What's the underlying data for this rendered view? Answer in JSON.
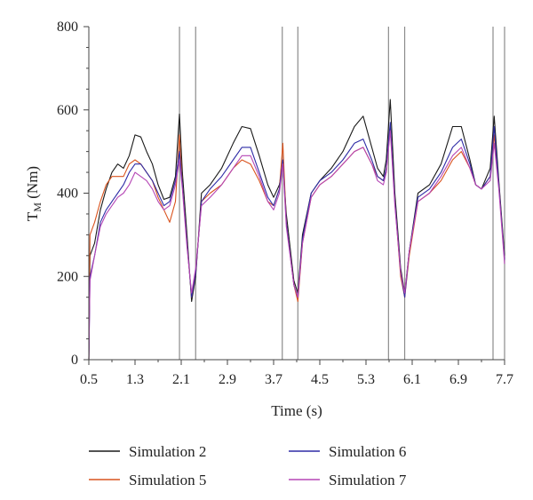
{
  "chart_data": {
    "type": "line",
    "title": "",
    "xlabel": "Time (s)",
    "ylabel_main": "T",
    "ylabel_sub": "M",
    "ylabel_unit": " (Nm)",
    "xlim": [
      0.5,
      7.7
    ],
    "ylim": [
      0,
      800
    ],
    "x_ticks": [
      0.5,
      1.3,
      2.1,
      2.9,
      3.7,
      4.5,
      5.3,
      6.1,
      6.9,
      7.7
    ],
    "x_tick_labels": [
      "0.5",
      "1.3",
      "2.1",
      "2.9",
      "3.7",
      "4.5",
      "5.3",
      "6.1",
      "6.9",
      "7.7"
    ],
    "y_ticks": [
      0,
      200,
      400,
      600,
      800
    ],
    "y_tick_labels": [
      "0",
      "200",
      "400",
      "600",
      "800"
    ],
    "grid": false,
    "legend_position": "bottom",
    "vertical_markers": [
      2.07,
      2.35,
      3.85,
      4.12,
      5.69,
      5.97,
      7.5,
      7.7
    ],
    "series": [
      {
        "name": "Simulation 2",
        "color": "#1a1a1a",
        "points": [
          [
            0.5,
            0
          ],
          [
            0.52,
            250
          ],
          [
            0.6,
            280
          ],
          [
            0.7,
            360
          ],
          [
            0.8,
            410
          ],
          [
            0.9,
            450
          ],
          [
            1.0,
            470
          ],
          [
            1.1,
            460
          ],
          [
            1.2,
            490
          ],
          [
            1.3,
            540
          ],
          [
            1.4,
            535
          ],
          [
            1.5,
            500
          ],
          [
            1.6,
            470
          ],
          [
            1.7,
            420
          ],
          [
            1.8,
            385
          ],
          [
            1.9,
            390
          ],
          [
            2.0,
            440
          ],
          [
            2.07,
            590
          ],
          [
            2.12,
            450
          ],
          [
            2.2,
            300
          ],
          [
            2.28,
            140
          ],
          [
            2.35,
            200
          ],
          [
            2.45,
            400
          ],
          [
            2.6,
            420
          ],
          [
            2.8,
            460
          ],
          [
            3.0,
            520
          ],
          [
            3.15,
            560
          ],
          [
            3.3,
            555
          ],
          [
            3.45,
            490
          ],
          [
            3.6,
            420
          ],
          [
            3.7,
            390
          ],
          [
            3.8,
            420
          ],
          [
            3.86,
            470
          ],
          [
            3.92,
            350
          ],
          [
            4.05,
            190
          ],
          [
            4.12,
            160
          ],
          [
            4.2,
            300
          ],
          [
            4.35,
            400
          ],
          [
            4.5,
            430
          ],
          [
            4.7,
            460
          ],
          [
            4.9,
            500
          ],
          [
            5.1,
            560
          ],
          [
            5.25,
            585
          ],
          [
            5.4,
            510
          ],
          [
            5.5,
            460
          ],
          [
            5.6,
            440
          ],
          [
            5.65,
            480
          ],
          [
            5.72,
            625
          ],
          [
            5.8,
            400
          ],
          [
            5.9,
            220
          ],
          [
            5.97,
            160
          ],
          [
            6.05,
            260
          ],
          [
            6.2,
            400
          ],
          [
            6.4,
            420
          ],
          [
            6.6,
            470
          ],
          [
            6.8,
            560
          ],
          [
            6.95,
            560
          ],
          [
            7.1,
            480
          ],
          [
            7.2,
            420
          ],
          [
            7.3,
            410
          ],
          [
            7.45,
            460
          ],
          [
            7.52,
            585
          ],
          [
            7.6,
            430
          ],
          [
            7.7,
            250
          ]
        ]
      },
      {
        "name": "Simulation 5",
        "color": "#d9531e",
        "points": [
          [
            0.5,
            0
          ],
          [
            0.52,
            300
          ],
          [
            0.6,
            330
          ],
          [
            0.7,
            380
          ],
          [
            0.8,
            420
          ],
          [
            0.9,
            440
          ],
          [
            1.0,
            440
          ],
          [
            1.1,
            440
          ],
          [
            1.2,
            470
          ],
          [
            1.3,
            480
          ],
          [
            1.4,
            470
          ],
          [
            1.5,
            450
          ],
          [
            1.6,
            430
          ],
          [
            1.7,
            390
          ],
          [
            1.8,
            360
          ],
          [
            1.9,
            330
          ],
          [
            2.0,
            380
          ],
          [
            2.07,
            540
          ],
          [
            2.12,
            420
          ],
          [
            2.2,
            280
          ],
          [
            2.28,
            150
          ],
          [
            2.35,
            210
          ],
          [
            2.45,
            380
          ],
          [
            2.6,
            400
          ],
          [
            2.8,
            420
          ],
          [
            3.0,
            460
          ],
          [
            3.15,
            480
          ],
          [
            3.3,
            470
          ],
          [
            3.45,
            430
          ],
          [
            3.6,
            380
          ],
          [
            3.7,
            370
          ],
          [
            3.8,
            410
          ],
          [
            3.86,
            520
          ],
          [
            3.92,
            330
          ],
          [
            4.05,
            180
          ],
          [
            4.12,
            140
          ],
          [
            4.2,
            280
          ],
          [
            4.35,
            390
          ],
          [
            4.5,
            420
          ],
          [
            4.7,
            440
          ],
          [
            4.9,
            470
          ],
          [
            5.1,
            500
          ],
          [
            5.25,
            510
          ],
          [
            5.4,
            470
          ],
          [
            5.5,
            440
          ],
          [
            5.6,
            430
          ],
          [
            5.65,
            450
          ],
          [
            5.72,
            560
          ],
          [
            5.8,
            380
          ],
          [
            5.9,
            200
          ],
          [
            5.97,
            150
          ],
          [
            6.05,
            250
          ],
          [
            6.2,
            380
          ],
          [
            6.4,
            400
          ],
          [
            6.6,
            430
          ],
          [
            6.8,
            480
          ],
          [
            6.95,
            500
          ],
          [
            7.1,
            460
          ],
          [
            7.2,
            420
          ],
          [
            7.3,
            410
          ],
          [
            7.45,
            440
          ],
          [
            7.52,
            540
          ],
          [
            7.6,
            420
          ],
          [
            7.7,
            240
          ]
        ]
      },
      {
        "name": "Simulation 6",
        "color": "#2e2ca6",
        "points": [
          [
            0.5,
            0
          ],
          [
            0.52,
            200
          ],
          [
            0.6,
            250
          ],
          [
            0.7,
            330
          ],
          [
            0.8,
            360
          ],
          [
            0.9,
            380
          ],
          [
            1.0,
            400
          ],
          [
            1.1,
            420
          ],
          [
            1.2,
            450
          ],
          [
            1.3,
            470
          ],
          [
            1.4,
            470
          ],
          [
            1.5,
            450
          ],
          [
            1.6,
            430
          ],
          [
            1.7,
            400
          ],
          [
            1.8,
            370
          ],
          [
            1.9,
            380
          ],
          [
            2.0,
            430
          ],
          [
            2.07,
            500
          ],
          [
            2.12,
            420
          ],
          [
            2.2,
            280
          ],
          [
            2.28,
            150
          ],
          [
            2.35,
            210
          ],
          [
            2.45,
            380
          ],
          [
            2.6,
            410
          ],
          [
            2.8,
            440
          ],
          [
            3.0,
            480
          ],
          [
            3.15,
            510
          ],
          [
            3.3,
            510
          ],
          [
            3.45,
            450
          ],
          [
            3.6,
            390
          ],
          [
            3.7,
            370
          ],
          [
            3.8,
            410
          ],
          [
            3.86,
            480
          ],
          [
            3.92,
            330
          ],
          [
            4.05,
            180
          ],
          [
            4.12,
            150
          ],
          [
            4.2,
            290
          ],
          [
            4.35,
            400
          ],
          [
            4.5,
            430
          ],
          [
            4.7,
            450
          ],
          [
            4.9,
            480
          ],
          [
            5.1,
            520
          ],
          [
            5.25,
            530
          ],
          [
            5.4,
            480
          ],
          [
            5.5,
            440
          ],
          [
            5.6,
            430
          ],
          [
            5.65,
            460
          ],
          [
            5.72,
            570
          ],
          [
            5.8,
            380
          ],
          [
            5.9,
            210
          ],
          [
            5.97,
            150
          ],
          [
            6.05,
            260
          ],
          [
            6.2,
            390
          ],
          [
            6.4,
            410
          ],
          [
            6.6,
            450
          ],
          [
            6.8,
            510
          ],
          [
            6.95,
            530
          ],
          [
            7.1,
            470
          ],
          [
            7.2,
            420
          ],
          [
            7.3,
            410
          ],
          [
            7.45,
            440
          ],
          [
            7.52,
            560
          ],
          [
            7.6,
            420
          ],
          [
            7.7,
            240
          ]
        ]
      },
      {
        "name": "Simulation 7",
        "color": "#b546b5",
        "points": [
          [
            0.5,
            0
          ],
          [
            0.52,
            190
          ],
          [
            0.6,
            250
          ],
          [
            0.7,
            320
          ],
          [
            0.8,
            350
          ],
          [
            0.9,
            370
          ],
          [
            1.0,
            390
          ],
          [
            1.1,
            400
          ],
          [
            1.2,
            420
          ],
          [
            1.3,
            450
          ],
          [
            1.4,
            440
          ],
          [
            1.5,
            430
          ],
          [
            1.6,
            410
          ],
          [
            1.7,
            380
          ],
          [
            1.8,
            360
          ],
          [
            1.9,
            370
          ],
          [
            2.0,
            420
          ],
          [
            2.07,
            480
          ],
          [
            2.12,
            410
          ],
          [
            2.2,
            270
          ],
          [
            2.28,
            160
          ],
          [
            2.35,
            220
          ],
          [
            2.45,
            370
          ],
          [
            2.6,
            390
          ],
          [
            2.8,
            420
          ],
          [
            3.0,
            460
          ],
          [
            3.15,
            490
          ],
          [
            3.3,
            490
          ],
          [
            3.45,
            440
          ],
          [
            3.6,
            380
          ],
          [
            3.7,
            360
          ],
          [
            3.8,
            400
          ],
          [
            3.86,
            470
          ],
          [
            3.92,
            320
          ],
          [
            4.05,
            180
          ],
          [
            4.12,
            150
          ],
          [
            4.2,
            280
          ],
          [
            4.35,
            390
          ],
          [
            4.5,
            420
          ],
          [
            4.7,
            440
          ],
          [
            4.9,
            470
          ],
          [
            5.1,
            500
          ],
          [
            5.25,
            510
          ],
          [
            5.4,
            470
          ],
          [
            5.5,
            430
          ],
          [
            5.6,
            420
          ],
          [
            5.65,
            450
          ],
          [
            5.72,
            550
          ],
          [
            5.8,
            370
          ],
          [
            5.9,
            210
          ],
          [
            5.97,
            160
          ],
          [
            6.05,
            260
          ],
          [
            6.2,
            380
          ],
          [
            6.4,
            400
          ],
          [
            6.6,
            440
          ],
          [
            6.8,
            490
          ],
          [
            6.95,
            510
          ],
          [
            7.1,
            460
          ],
          [
            7.2,
            420
          ],
          [
            7.3,
            410
          ],
          [
            7.45,
            430
          ],
          [
            7.52,
            520
          ],
          [
            7.6,
            410
          ],
          [
            7.7,
            230
          ]
        ]
      }
    ]
  }
}
